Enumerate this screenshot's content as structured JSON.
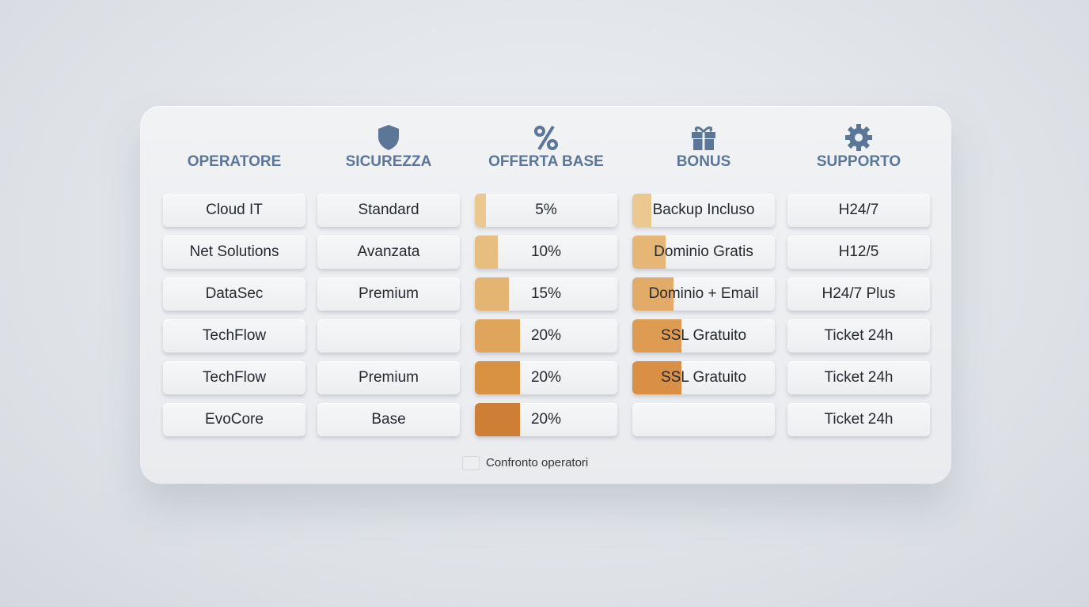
{
  "header": {
    "columns": [
      "OPERATORE",
      "SICUREZZA",
      "OFFERTA BASE",
      "BONUS",
      "SUPPORTO"
    ]
  },
  "table": {
    "rows": [
      [
        "Cloud IT",
        "Standard",
        {
          "value": 5,
          "label": "5%"
        },
        "Backup Incluso",
        "H24/7"
      ],
      [
        "Net Solutions",
        "Avanzata",
        {
          "value": 10,
          "label": "10%"
        },
        "Dominio Gratis",
        "H12/5"
      ],
      [
        "DataSec",
        "Premium",
        {
          "value": 15,
          "label": "15%"
        },
        "Dominio + Email",
        "H24/7 Plus"
      ],
      [
        "TechFlow",
        null,
        {
          "value": 20,
          "label": "20%"
        },
        "SSL Gratuito",
        "Ticket 24h"
      ],
      [
        "TechFlow",
        "Premium",
        {
          "value": 20,
          "label": "20%"
        },
        "SSL Gratuito",
        "Ticket 24h"
      ],
      [
        "EvoCore",
        "Base",
        {
          "value": 20,
          "label": "20%"
        },
        null,
        "Ticket 24h"
      ]
    ]
  },
  "footer": {
    "label": "Confronto operatori"
  }
}
